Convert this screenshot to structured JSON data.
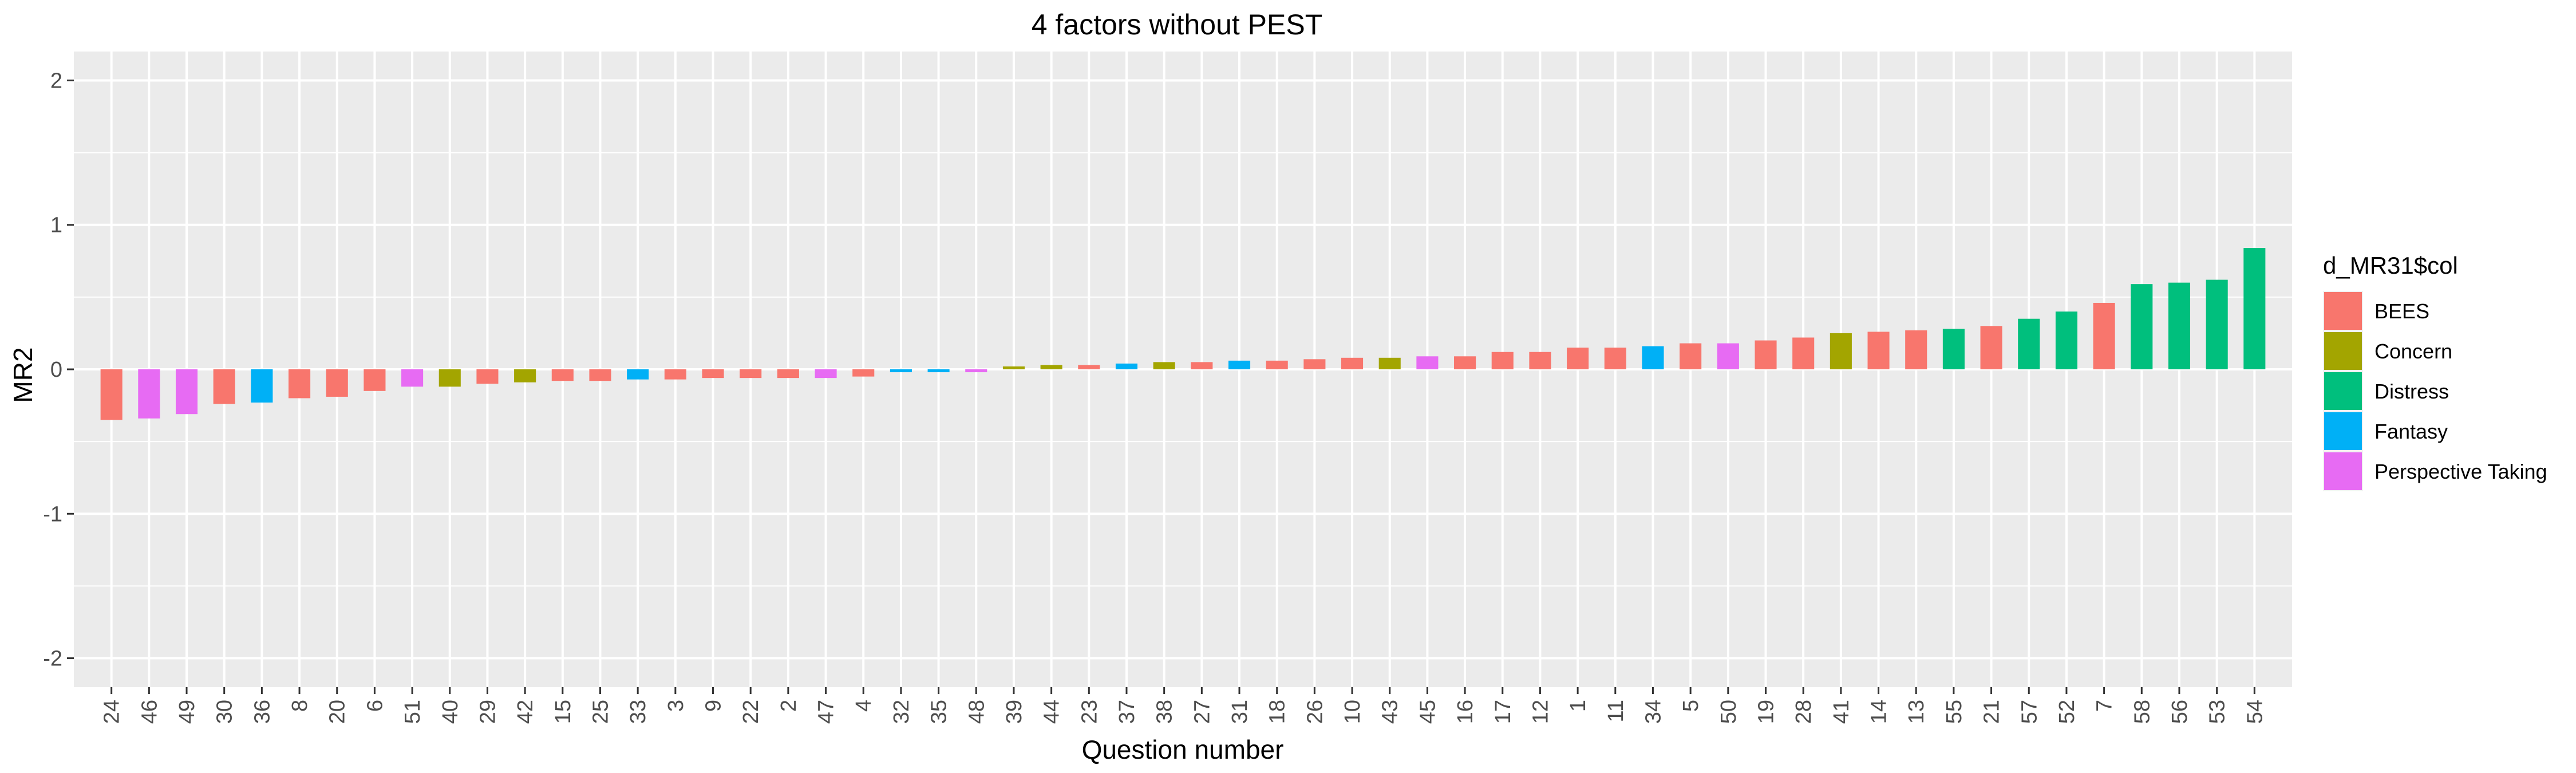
{
  "chart_data": {
    "type": "bar",
    "title": "4 factors without PEST",
    "xlabel": "Question number",
    "ylabel": "MR2",
    "ylim": [
      -2.2,
      2.2
    ],
    "yticks": [
      -2,
      -1,
      0,
      1,
      2
    ],
    "grid": true,
    "legend": {
      "title": "d_MR31$col",
      "placement": "right",
      "entries": [
        {
          "label": "BEES",
          "color": "#F8766D"
        },
        {
          "label": "Concern",
          "color": "#A3A500"
        },
        {
          "label": "Distress",
          "color": "#00BF7D"
        },
        {
          "label": "Fantasy",
          "color": "#00B0F6"
        },
        {
          "label": "Perspective Taking",
          "color": "#E76BF3"
        }
      ]
    },
    "categories": [
      "24",
      "46",
      "49",
      "30",
      "36",
      "8",
      "20",
      "6",
      "51",
      "40",
      "29",
      "42",
      "15",
      "25",
      "33",
      "3",
      "9",
      "22",
      "2",
      "47",
      "4",
      "32",
      "35",
      "48",
      "39",
      "44",
      "23",
      "37",
      "38",
      "27",
      "31",
      "18",
      "26",
      "10",
      "43",
      "45",
      "16",
      "17",
      "12",
      "1",
      "11",
      "34",
      "5",
      "50",
      "19",
      "28",
      "41",
      "14",
      "13",
      "55",
      "21",
      "57",
      "52",
      "7",
      "58",
      "56",
      "53",
      "54"
    ],
    "values": [
      -0.35,
      -0.34,
      -0.31,
      -0.24,
      -0.23,
      -0.2,
      -0.19,
      -0.15,
      -0.12,
      -0.12,
      -0.1,
      -0.09,
      -0.08,
      -0.08,
      -0.07,
      -0.07,
      -0.06,
      -0.06,
      -0.06,
      -0.06,
      -0.05,
      -0.02,
      -0.02,
      -0.02,
      0.02,
      0.03,
      0.03,
      0.04,
      0.05,
      0.05,
      0.06,
      0.06,
      0.07,
      0.08,
      0.08,
      0.09,
      0.09,
      0.12,
      0.12,
      0.15,
      0.15,
      0.16,
      0.18,
      0.18,
      0.2,
      0.22,
      0.25,
      0.26,
      0.27,
      0.28,
      0.3,
      0.35,
      0.4,
      0.46,
      0.59,
      0.6,
      0.62,
      0.84
    ],
    "groups": [
      "BEES",
      "Perspective Taking",
      "Perspective Taking",
      "BEES",
      "Fantasy",
      "BEES",
      "BEES",
      "BEES",
      "Perspective Taking",
      "Concern",
      "BEES",
      "Concern",
      "BEES",
      "BEES",
      "Fantasy",
      "BEES",
      "BEES",
      "BEES",
      "BEES",
      "Perspective Taking",
      "BEES",
      "Fantasy",
      "Fantasy",
      "Perspective Taking",
      "Concern",
      "Concern",
      "BEES",
      "Fantasy",
      "Concern",
      "BEES",
      "Fantasy",
      "BEES",
      "BEES",
      "BEES",
      "Concern",
      "Perspective Taking",
      "BEES",
      "BEES",
      "BEES",
      "BEES",
      "BEES",
      "Fantasy",
      "BEES",
      "Perspective Taking",
      "BEES",
      "BEES",
      "Concern",
      "BEES",
      "BEES",
      "Distress",
      "BEES",
      "Distress",
      "Distress",
      "BEES",
      "Distress",
      "Distress",
      "Distress",
      "Distress"
    ]
  }
}
